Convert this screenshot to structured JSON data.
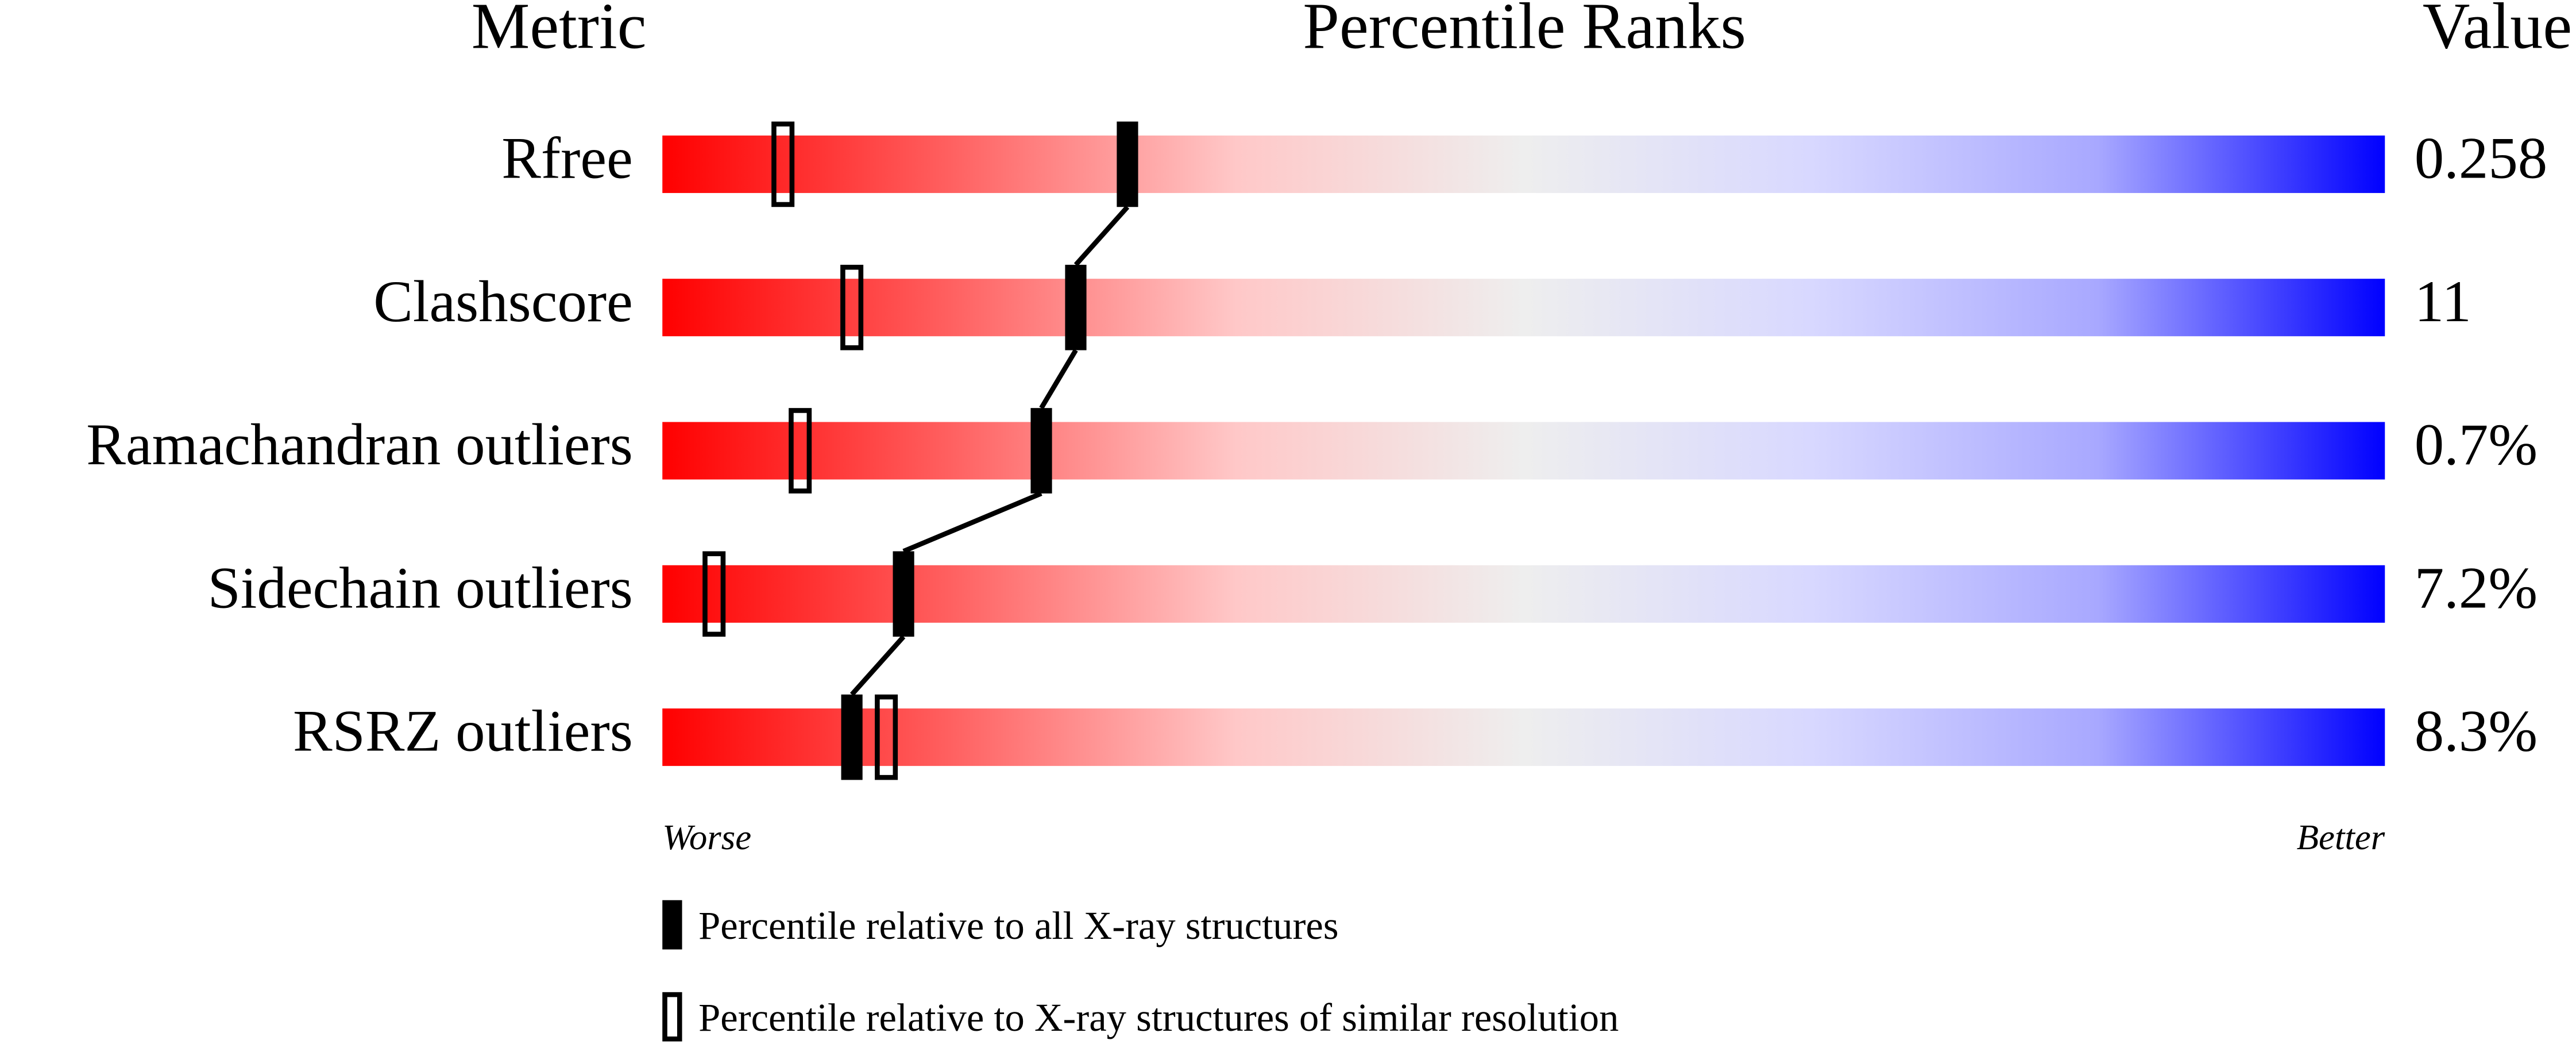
{
  "chart_data": {
    "type": "percentile",
    "label_header": "Metric",
    "title": "Percentile Ranks",
    "value_header": "Value",
    "categories": [
      "Rfree",
      "Clashscore",
      "Ramachandran outliers",
      "Sidechain outliers",
      "RSRZ outliers"
    ],
    "metric_values": [
      "0.258",
      "11",
      "0.7%",
      "7.2%",
      "8.3%"
    ],
    "series": [
      {
        "name": "Percentile relative to all X-ray structures",
        "color": "#000000",
        "filled": true,
        "values": [
          27,
          24,
          22,
          14,
          11
        ]
      },
      {
        "name": "Percentile relative to X-ray structures of similar resolution",
        "color": "#000000",
        "filled": false,
        "values": [
          7,
          11,
          8,
          3,
          13
        ]
      }
    ],
    "xlim": [
      0,
      100
    ],
    "x_low_label": "Worse",
    "x_high_label": "Better",
    "gradient": [
      "#ff0000",
      "#ff6060",
      "#ffc8c8",
      "#eeeeee",
      "#d8d8ff",
      "#a8a8ff",
      "#0000ff"
    ]
  }
}
